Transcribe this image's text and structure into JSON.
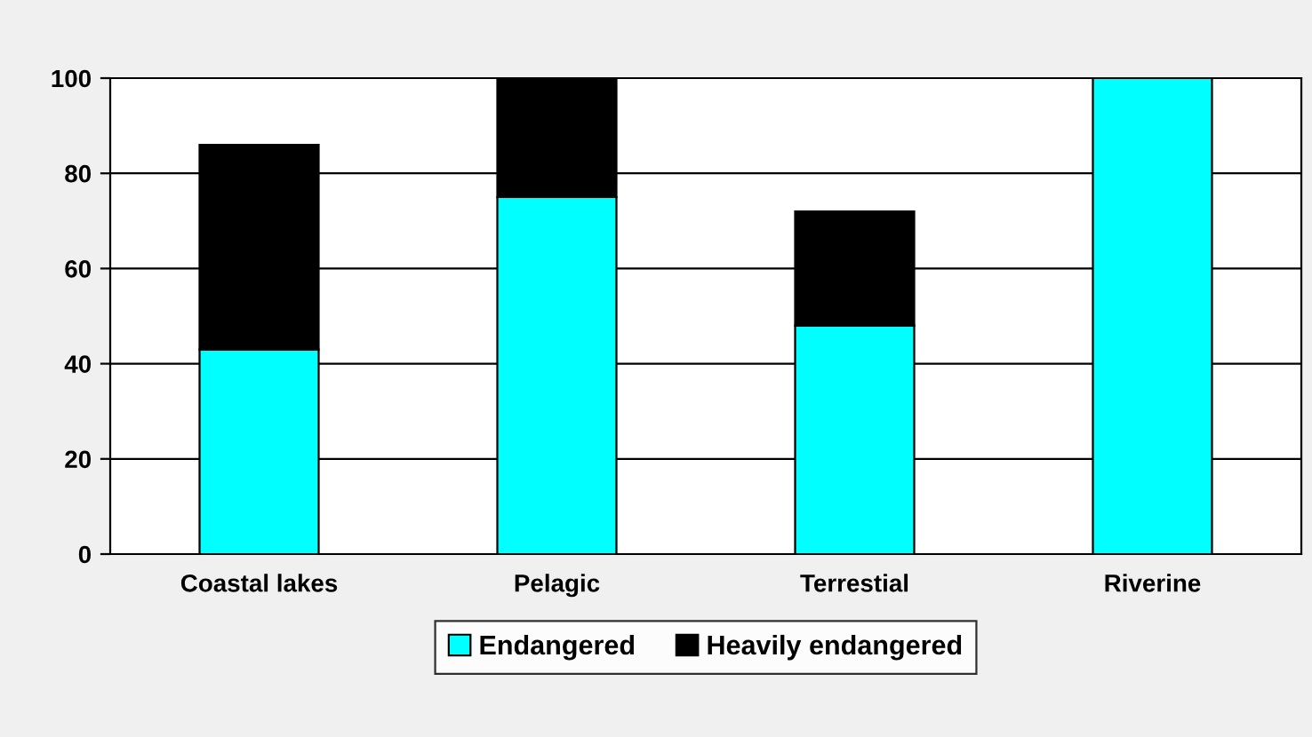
{
  "chart_data": {
    "type": "bar",
    "stacked": true,
    "categories": [
      "Coastal lakes",
      "Pelagic",
      "Terrestial",
      "Riverine"
    ],
    "series": [
      {
        "name": "Endangered",
        "color": "#00ffff",
        "values": [
          43,
          75,
          48,
          100
        ]
      },
      {
        "name": "Heavily endangered",
        "color": "#000000",
        "values": [
          43,
          25,
          24,
          0
        ]
      }
    ],
    "ylim": [
      0,
      100
    ],
    "yticks": [
      0,
      20,
      40,
      60,
      80,
      100
    ],
    "grid": "y",
    "legend": "bottom"
  }
}
